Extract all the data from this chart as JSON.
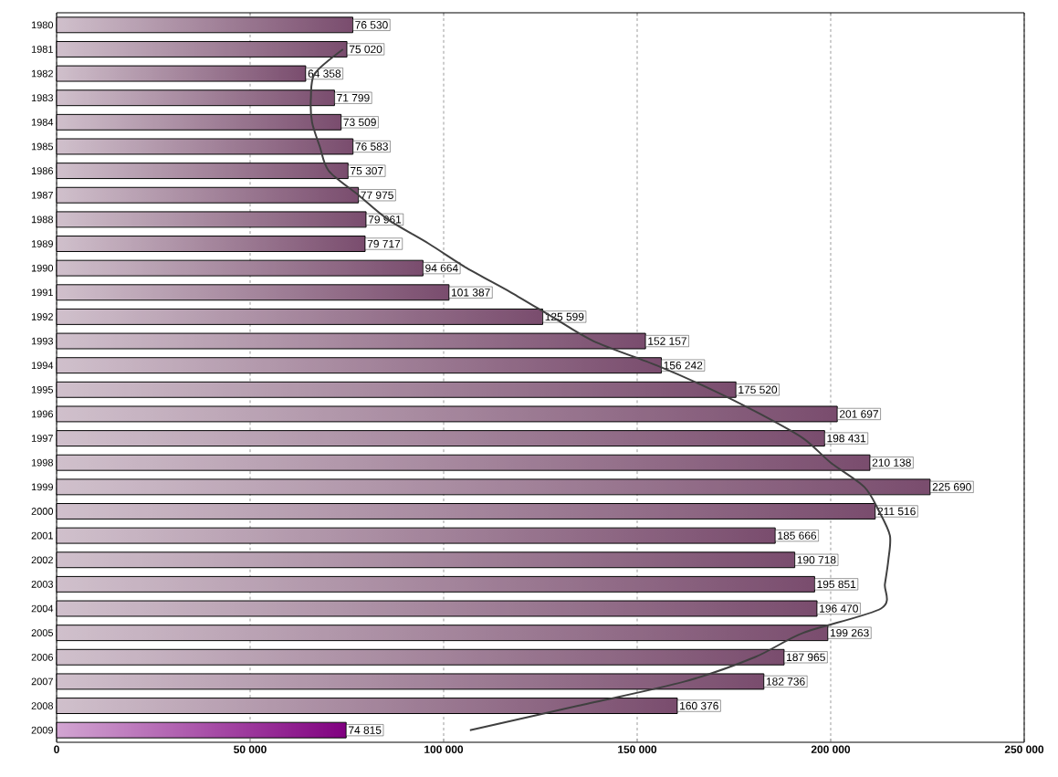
{
  "chart_data": {
    "type": "bar",
    "orientation": "horizontal",
    "grid": "x",
    "categories": [
      "1980",
      "1981",
      "1982",
      "1983",
      "1984",
      "1985",
      "1986",
      "1987",
      "1988",
      "1989",
      "1990",
      "1991",
      "1992",
      "1993",
      "1994",
      "1995",
      "1996",
      "1997",
      "1998",
      "1999",
      "2000",
      "2001",
      "2002",
      "2003",
      "2004",
      "2005",
      "2006",
      "2007",
      "2008",
      "2009"
    ],
    "xlim": [
      0,
      250000
    ],
    "xticks": [
      {
        "value": 0,
        "label": "0"
      },
      {
        "value": 50000,
        "label": "50 000"
      },
      {
        "value": 100000,
        "label": "100 000"
      },
      {
        "value": 150000,
        "label": "150 000"
      },
      {
        "value": 200000,
        "label": "200 000"
      },
      {
        "value": 250000,
        "label": "250 000"
      }
    ],
    "series": [
      {
        "colors": [
          "#7a4d6e",
          "#7a4d6e",
          "#7a4d6e",
          "#7a4d6e",
          "#7a4d6e",
          "#7a4d6e",
          "#7a4d6e",
          "#7a4d6e",
          "#7a4d6e",
          "#7a4d6e",
          "#7a4d6e",
          "#7a4d6e",
          "#7a4d6e",
          "#7a4d6e",
          "#7a4d6e",
          "#7a4d6e",
          "#7a4d6e",
          "#7a4d6e",
          "#7a4d6e",
          "#7a4d6e",
          "#7a4d6e",
          "#7a4d6e",
          "#7a4d6e",
          "#7a4d6e",
          "#7a4d6e",
          "#7a4d6e",
          "#7a4d6e",
          "#7a4d6e",
          "#7a4d6e",
          "#800080"
        ],
        "values": [
          76530,
          75020,
          64358,
          71799,
          73509,
          76583,
          75307,
          77975,
          79961,
          79717,
          94664,
          101387,
          125599,
          152157,
          156242,
          175520,
          201697,
          198431,
          210138,
          225690,
          211516,
          185666,
          190718,
          195851,
          196470,
          199263,
          187965,
          182736,
          160376,
          74815
        ],
        "value_labels": [
          "76 530",
          "75 020",
          "64 358",
          "71 799",
          "73 509",
          "76 583",
          "75 307",
          "77 975",
          "79 961",
          "79 717",
          "94 664",
          "101 387",
          "125 599",
          "152 157",
          "156 242",
          "175 520",
          "201 697",
          "198 431",
          "210 138",
          "225 690",
          "211 516",
          "185 666",
          "190 718",
          "195 851",
          "196 470",
          "199 263",
          "187 965",
          "182 736",
          "160 376",
          "74 815"
        ]
      },
      {
        "type": "line",
        "color": "#404040",
        "values": [
          null,
          74000,
          66700,
          65700,
          66000,
          68000,
          70300,
          78000,
          85600,
          96200,
          106000,
          117400,
          128000,
          138700,
          155000,
          169300,
          181800,
          192900,
          200000,
          208700,
          212500,
          215300,
          214900,
          214000,
          213000,
          192900,
          180400,
          162300,
          134700,
          106800
        ]
      }
    ]
  }
}
